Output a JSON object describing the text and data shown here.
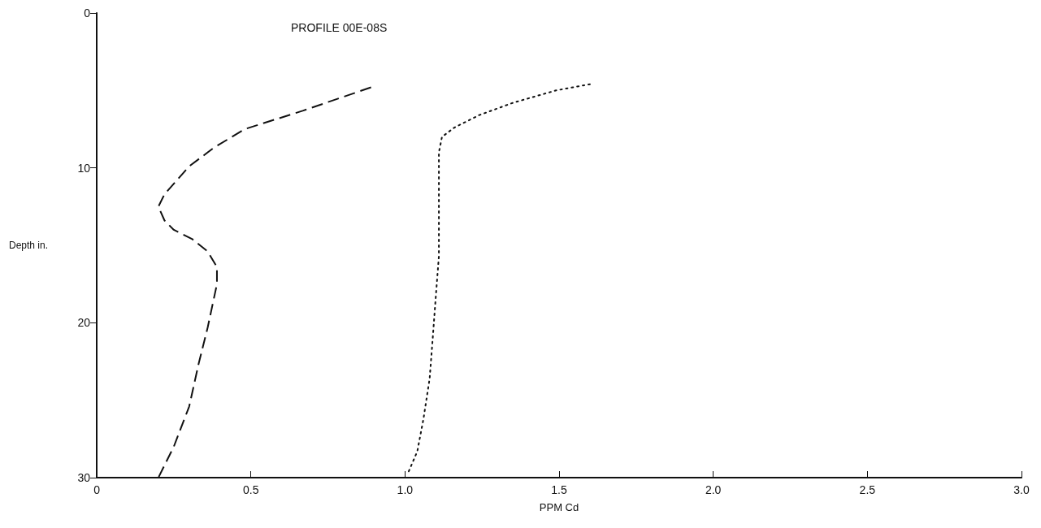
{
  "chart_data": {
    "type": "line",
    "title": "PROFILE 00E-08S",
    "xlabel": "PPM Cd",
    "ylabel": "Depth in.",
    "xlim": [
      0,
      3.0
    ],
    "xticks": [
      0,
      0.5,
      {
        "value": 1,
        "label": "1.0"
      },
      1.5,
      {
        "value": 2,
        "label": "2.0"
      },
      2.5,
      {
        "value": 3,
        "label": "3.0"
      }
    ],
    "ylim": [
      30,
      0
    ],
    "yticks": [
      0,
      10,
      20,
      30
    ],
    "grid": false,
    "marker": "none",
    "series": [
      {
        "color": "#111111",
        "line_style": "dashed",
        "x": [
          0.89,
          0.67,
          0.48,
          0.38,
          0.3,
          0.22,
          0.2,
          0.22,
          0.25,
          0.31,
          0.36,
          0.39,
          0.39,
          0.36,
          0.33,
          0.3,
          0.25,
          0.22,
          0.2
        ],
        "values": [
          4.8,
          6.3,
          7.5,
          8.7,
          9.9,
          11.7,
          12.5,
          13.4,
          14.0,
          14.6,
          15.4,
          16.4,
          17.5,
          20.3,
          22.7,
          25.4,
          28.0,
          29.2,
          30
        ]
      },
      {
        "color": "#111111",
        "line_style": "dotted",
        "x": [
          1.6,
          1.49,
          1.35,
          1.24,
          1.16,
          1.12,
          1.11,
          1.11,
          1.11,
          1.1,
          1.09,
          1.08,
          1.06,
          1.04,
          1.01
        ],
        "values": [
          4.6,
          5.0,
          5.8,
          6.6,
          7.4,
          8.0,
          9.0,
          11.3,
          15.7,
          18.3,
          21.0,
          23.6,
          26.2,
          28.3,
          29.7
        ]
      }
    ]
  }
}
